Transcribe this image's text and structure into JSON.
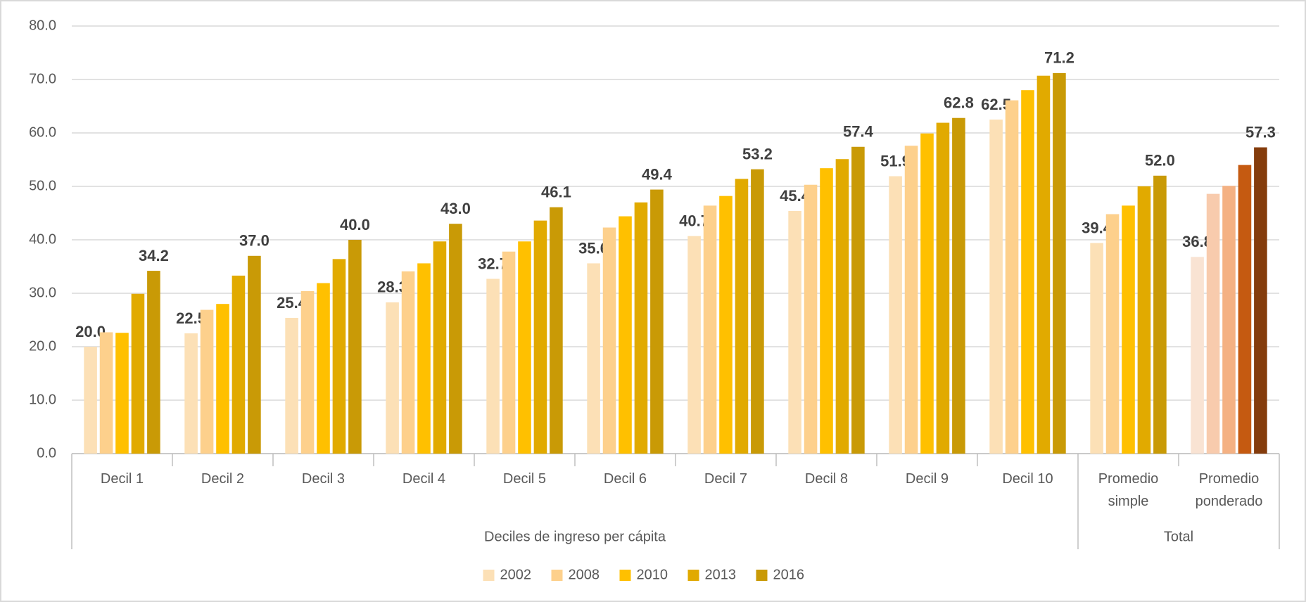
{
  "chart_data": {
    "type": "bar",
    "categories": [
      "Decil 1",
      "Decil 2",
      "Decil 3",
      "Decil 4",
      "Decil 5",
      "Decil 6",
      "Decil 7",
      "Decil 8",
      "Decil 9",
      "Decil 10",
      "Promedio simple",
      "Promedio ponderado"
    ],
    "category_groups": [
      {
        "name": "Deciles de ingreso per cápita",
        "categories": [
          "Decil 1",
          "Decil 2",
          "Decil 3",
          "Decil 4",
          "Decil 5",
          "Decil 6",
          "Decil 7",
          "Decil 8",
          "Decil 9",
          "Decil 10"
        ]
      },
      {
        "name": "Total",
        "categories": [
          "Promedio simple",
          "Promedio ponderado"
        ]
      }
    ],
    "series": [
      {
        "name": "2002",
        "color": "#fce0b6",
        "colors": [
          "#fce0b6",
          "#fce0b6",
          "#fce0b6",
          "#fce0b6",
          "#fce0b6",
          "#fce0b6",
          "#fce0b6",
          "#fce0b6",
          "#fce0b6",
          "#fce0b6",
          "#fce0b6",
          "#f9e3d3"
        ],
        "values": [
          20.0,
          22.5,
          25.4,
          28.3,
          32.7,
          35.6,
          40.7,
          45.4,
          51.9,
          62.5,
          39.4,
          36.8
        ],
        "value_labels": [
          "20.0",
          "22.5",
          "25.4",
          "28.3",
          "32.7",
          "35.6",
          "40.7",
          "45.4",
          "51.9",
          "62.5",
          "39.4",
          "36.8"
        ]
      },
      {
        "name": "2008",
        "color": "#fdd08c",
        "colors": [
          "#fdd08c",
          "#fdd08c",
          "#fdd08c",
          "#fdd08c",
          "#fdd08c",
          "#fdd08c",
          "#fdd08c",
          "#fdd08c",
          "#fdd08c",
          "#fdd08c",
          "#fdd08c",
          "#f8cbad"
        ],
        "values": [
          22.7,
          26.9,
          30.4,
          34.1,
          37.8,
          42.3,
          46.4,
          50.3,
          57.6,
          66.1,
          44.8,
          48.6
        ]
      },
      {
        "name": "2010",
        "color": "#ffc000",
        "colors": [
          "#ffc000",
          "#ffc000",
          "#ffc000",
          "#ffc000",
          "#ffc000",
          "#ffc000",
          "#ffc000",
          "#ffc000",
          "#ffc000",
          "#ffc000",
          "#ffc000",
          "#f4b183"
        ],
        "values": [
          22.6,
          28.0,
          31.9,
          35.6,
          39.7,
          44.4,
          48.2,
          53.4,
          59.9,
          68.0,
          46.4,
          50.1
        ]
      },
      {
        "name": "2013",
        "color": "#e1aa00",
        "colors": [
          "#e1aa00",
          "#e1aa00",
          "#e1aa00",
          "#e1aa00",
          "#e1aa00",
          "#e1aa00",
          "#e1aa00",
          "#e1aa00",
          "#e1aa00",
          "#e1aa00",
          "#e1aa00",
          "#c55a11"
        ],
        "values": [
          29.9,
          33.3,
          36.4,
          39.7,
          43.6,
          47.0,
          51.4,
          55.1,
          61.9,
          70.7,
          50.0,
          54.0
        ]
      },
      {
        "name": "2016",
        "color": "#c99a06",
        "colors": [
          "#c99a06",
          "#c99a06",
          "#c99a06",
          "#c99a06",
          "#c99a06",
          "#c99a06",
          "#c99a06",
          "#c99a06",
          "#c99a06",
          "#c99a06",
          "#c99a06",
          "#843c0c"
        ],
        "values": [
          34.2,
          37.0,
          40.0,
          43.0,
          46.1,
          49.4,
          53.2,
          57.4,
          62.8,
          71.2,
          52.0,
          57.3
        ],
        "value_labels": [
          "34.2",
          "37.0",
          "40.0",
          "43.0",
          "46.1",
          "49.4",
          "53.2",
          "57.4",
          "62.8",
          "71.2",
          "52.0",
          "57.3"
        ]
      }
    ],
    "ylim": [
      0,
      80
    ],
    "yticks": [
      {
        "value": 0,
        "label": "0.0"
      },
      {
        "value": 10,
        "label": "10.0"
      },
      {
        "value": 20,
        "label": "20.0"
      },
      {
        "value": 30,
        "label": "30.0"
      },
      {
        "value": 40,
        "label": "40.0"
      },
      {
        "value": 50,
        "label": "50.0"
      },
      {
        "value": 60,
        "label": "60.0"
      },
      {
        "value": 70,
        "label": "70.0"
      },
      {
        "value": 80,
        "label": "80.0"
      }
    ],
    "grid": true,
    "legend": "bottom"
  }
}
